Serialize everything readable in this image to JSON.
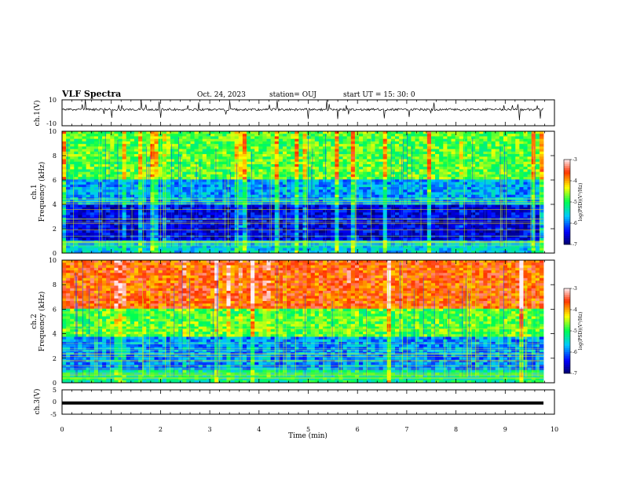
{
  "header": {
    "title": "VLF Spectra",
    "date": "Oct. 24, 2023",
    "station": "station= OUJ",
    "start": "start  UT =   15: 30: 0"
  },
  "chart_data": [
    {
      "type": "line",
      "ylabel": "ch.1(V)",
      "ylim": [
        -10,
        10
      ],
      "yticks": [
        "10",
        "-10"
      ],
      "x_range_min": [
        0,
        9.83
      ],
      "baseline": 2.5,
      "notes_visible": "dense waveform with spikes"
    },
    {
      "type": "heatmap",
      "ylabel_top": "ch.1",
      "ylabel": "Frequency (kHz)",
      "ylim": [
        0,
        10
      ],
      "yticks": [
        "0",
        "2",
        "4",
        "6",
        "8",
        "10"
      ],
      "xlim": [
        0,
        10
      ],
      "colorbar": {
        "ticks": [
          "-3",
          "-4",
          "-5",
          "-6",
          "-7"
        ],
        "label": "log(PSD)(V²/Hz)",
        "range": [
          -7,
          -3
        ]
      }
    },
    {
      "type": "heatmap",
      "ylabel_top": "ch.2",
      "ylabel": "Frequency (kHz)",
      "ylim": [
        0,
        10
      ],
      "yticks": [
        "0",
        "2",
        "4",
        "6",
        "8",
        "10"
      ],
      "xlim": [
        0,
        10
      ],
      "colorbar": {
        "ticks": [
          "-3",
          "-4",
          "-5",
          "-6",
          "-7"
        ],
        "label": "log(PSD)(V²/Hz)",
        "range": [
          -7,
          -3
        ]
      }
    },
    {
      "type": "line",
      "ylabel": "ch.3(V)",
      "ylim": [
        -5,
        5
      ],
      "yticks": [
        "5",
        "0",
        "-5"
      ],
      "baseline": -0.4,
      "xlabel": "Time  (min)",
      "xlim": [
        0,
        10
      ],
      "xticks": [
        "0",
        "1",
        "2",
        "3",
        "4",
        "5",
        "6",
        "7",
        "8",
        "9",
        "10"
      ]
    }
  ]
}
